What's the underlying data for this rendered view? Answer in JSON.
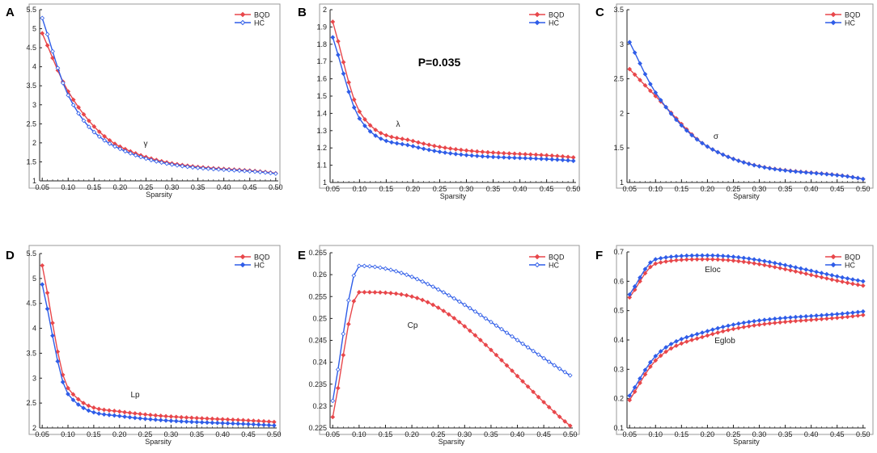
{
  "colors": {
    "bqd": "#e8474b",
    "hc": "#2f5de8",
    "axis": "#555555",
    "frame": "#222222"
  },
  "chart_data": [
    {
      "panel_label": "A",
      "type": "line",
      "xlabel": "Sparsity",
      "ylabel": "",
      "annotation": "γ",
      "p_value_label": "",
      "xlim": [
        0.045,
        0.505
      ],
      "ylim": [
        1,
        5.5
      ],
      "xticks": [
        "0.05",
        "0.10",
        "0.15",
        "0.20",
        "0.25",
        "0.30",
        "0.35",
        "0.40",
        "0.45",
        "0.50"
      ],
      "yticks": [
        "1",
        "1.5",
        "2",
        "2.5",
        "3",
        "3.5",
        "4",
        "4.5",
        "5",
        "5.5"
      ],
      "series": [
        {
          "name": "BQD",
          "marker_fill": "filled",
          "key": {
            "a": 0.05,
            "b": 4.88,
            "c": 0.1,
            "d": 3.35,
            "e": 0.2,
            "f": 1.9,
            "g": 0.5,
            "h": 1.2
          }
        },
        {
          "name": "HC",
          "marker_fill": "open",
          "key": {
            "a": 0.05,
            "b": 5.28,
            "c": 0.1,
            "d": 3.25,
            "e": 0.2,
            "f": 1.84,
            "g": 0.5,
            "h": 1.19
          }
        }
      ]
    },
    {
      "panel_label": "B",
      "type": "line",
      "xlabel": "Sparsity",
      "ylabel": "",
      "annotation": "λ",
      "p_value_label": "P=0.035",
      "xlim": [
        0.045,
        0.505
      ],
      "ylim": [
        1,
        2
      ],
      "xticks": [
        "0.05",
        "0.10",
        "0.15",
        "0.20",
        "0.25",
        "0.30",
        "0.35",
        "0.40",
        "0.45",
        "0.50"
      ],
      "yticks": [
        "1",
        "1.1",
        "1.2",
        "1.3",
        "1.4",
        "1.5",
        "1.6",
        "1.7",
        "1.8",
        "1.9",
        "2"
      ],
      "series": [
        {
          "name": "BQD",
          "marker_fill": "filled",
          "key": {
            "a": 0.05,
            "b": 1.93,
            "c": 0.1,
            "d": 1.41,
            "e": 0.2,
            "f": 1.24,
            "g": 0.5,
            "h": 1.145
          }
        },
        {
          "name": "HC",
          "marker_fill": "filled",
          "key": {
            "a": 0.05,
            "b": 1.84,
            "c": 0.1,
            "d": 1.37,
            "e": 0.2,
            "f": 1.21,
            "g": 0.5,
            "h": 1.125
          }
        }
      ]
    },
    {
      "panel_label": "C",
      "type": "line",
      "xlabel": "Sparsity",
      "ylabel": "",
      "annotation": "σ",
      "p_value_label": "",
      "xlim": [
        0.045,
        0.505
      ],
      "ylim": [
        1,
        3.5
      ],
      "xticks": [
        "0.05",
        "0.10",
        "0.15",
        "0.20",
        "0.25",
        "0.30",
        "0.35",
        "0.40",
        "0.45",
        "0.50"
      ],
      "yticks": [
        "1",
        "1.5",
        "2",
        "2.5",
        "3",
        "3.5"
      ],
      "series": [
        {
          "name": "BQD",
          "marker_fill": "filled",
          "key": {
            "a": 0.05,
            "b": 2.64,
            "c": 0.1,
            "d": 2.25,
            "e": 0.2,
            "f": 1.52,
            "g": 0.5,
            "h": 1.05
          }
        },
        {
          "name": "HC",
          "marker_fill": "filled",
          "key": {
            "a": 0.05,
            "b": 3.03,
            "c": 0.1,
            "d": 2.3,
            "e": 0.2,
            "f": 1.52,
            "g": 0.5,
            "h": 1.05
          }
        }
      ]
    },
    {
      "panel_label": "D",
      "type": "line",
      "xlabel": "Sparsity",
      "ylabel": "",
      "annotation": "Lp",
      "p_value_label": "",
      "xlim": [
        0.045,
        0.505
      ],
      "ylim": [
        2,
        5.5
      ],
      "xticks": [
        "0.05",
        "0.10",
        "0.15",
        "0.20",
        "0.25",
        "0.30",
        "0.35",
        "0.40",
        "0.45",
        "0.50"
      ],
      "yticks": [
        "2",
        "2.5",
        "3",
        "3.5",
        "4",
        "4.5",
        "5",
        "5.5"
      ],
      "series": [
        {
          "name": "BQD",
          "marker_fill": "filled",
          "key": {
            "a": 0.05,
            "b": 5.26,
            "c": 0.1,
            "d": 2.8,
            "e": 0.2,
            "f": 2.33,
            "g": 0.5,
            "h": 2.12
          }
        },
        {
          "name": "HC",
          "marker_fill": "filled",
          "key": {
            "a": 0.05,
            "b": 4.88,
            "c": 0.1,
            "d": 2.68,
            "e": 0.2,
            "f": 2.24,
            "g": 0.5,
            "h": 2.05
          }
        }
      ]
    },
    {
      "panel_label": "E",
      "type": "line",
      "xlabel": "Sparsity",
      "ylabel": "",
      "annotation": "Cp",
      "p_value_label": "",
      "xlim": [
        0.045,
        0.505
      ],
      "ylim": [
        0.225,
        0.265
      ],
      "xticks": [
        "0.05",
        "0.10",
        "0.15",
        "0.20",
        "0.25",
        "0.30",
        "0.35",
        "0.40",
        "0.45",
        "0.50"
      ],
      "yticks": [
        "0.225",
        "0.23",
        "0.235",
        "0.24",
        "0.245",
        "0.25",
        "0.255",
        "0.26",
        "0.265"
      ],
      "series": [
        {
          "name": "BQD",
          "marker_fill": "filled",
          "key": {
            "a": 0.05,
            "b": 0.2275,
            "c": 0.1,
            "d": 0.256,
            "e": 0.2,
            "f": 0.255,
            "g": 0.5,
            "h": 0.2255
          }
        },
        {
          "name": "HC",
          "marker_fill": "open",
          "key": {
            "a": 0.05,
            "b": 0.2312,
            "c": 0.1,
            "d": 0.262,
            "e": 0.2,
            "f": 0.2595,
            "g": 0.5,
            "h": 0.237
          }
        }
      ]
    },
    {
      "panel_label": "F",
      "type": "line",
      "xlabel": "Sparsity",
      "ylabel": "",
      "annotation": "Eloc",
      "annotation2": "Eglob",
      "p_value_label": "",
      "xlim": [
        0.045,
        0.505
      ],
      "ylim": [
        0.1,
        0.7
      ],
      "xticks": [
        "0.05",
        "0.10",
        "0.15",
        "0.20",
        "0.25",
        "0.30",
        "0.35",
        "0.40",
        "0.45",
        "0.50"
      ],
      "yticks": [
        "0.1",
        "0.2",
        "0.3",
        "0.4",
        "0.5",
        "0.6",
        "0.7"
      ],
      "series": [
        {
          "name": "BQD",
          "marker_fill": "filled",
          "key": {
            "a": 0.05,
            "b": 0.545,
            "c": 0.1,
            "d": 0.66,
            "e": 0.2,
            "f": 0.675,
            "g": 0.5,
            "h": 0.585
          }
        },
        {
          "name": "HC",
          "marker_fill": "filled",
          "key": {
            "a": 0.05,
            "b": 0.555,
            "c": 0.1,
            "d": 0.675,
            "e": 0.2,
            "f": 0.688,
            "g": 0.5,
            "h": 0.6
          }
        },
        {
          "name": "BQD",
          "legend": false,
          "marker_fill": "filled",
          "key": {
            "a": 0.05,
            "b": 0.195,
            "c": 0.1,
            "d": 0.33,
            "e": 0.2,
            "f": 0.415,
            "g": 0.5,
            "h": 0.485
          }
        },
        {
          "name": "HC",
          "legend": false,
          "marker_fill": "filled",
          "key": {
            "a": 0.05,
            "b": 0.21,
            "c": 0.1,
            "d": 0.345,
            "e": 0.2,
            "f": 0.43,
            "g": 0.5,
            "h": 0.497
          }
        }
      ]
    }
  ]
}
